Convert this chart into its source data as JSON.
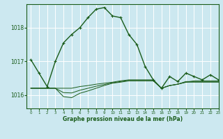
{
  "title": "Graphe pression niveau de la mer (hPa)",
  "bg_color": "#cce8f0",
  "grid_color": "#ffffff",
  "line_color": "#1a5c1a",
  "xlim": [
    -0.5,
    23
  ],
  "ylim": [
    1015.6,
    1018.7
  ],
  "yticks": [
    1016,
    1017,
    1018
  ],
  "xtick_labels": [
    "0",
    "1",
    "2",
    "3",
    "4",
    "5",
    "6",
    "7",
    "8",
    "9",
    "10",
    "11",
    "12",
    "13",
    "14",
    "15",
    "16",
    "17",
    "18",
    "19",
    "20",
    "21",
    "22",
    "23"
  ],
  "series1_x": [
    0,
    1,
    2,
    3,
    4,
    5,
    6,
    7,
    8,
    9,
    10,
    11,
    12,
    13,
    14,
    15,
    16,
    17,
    18,
    19,
    20,
    21,
    22,
    23
  ],
  "series1_y": [
    1017.05,
    1016.65,
    1016.25,
    1017.0,
    1017.55,
    1017.8,
    1018.0,
    1018.3,
    1018.55,
    1018.6,
    1018.35,
    1018.3,
    1017.8,
    1017.5,
    1016.85,
    1016.45,
    1016.2,
    1016.55,
    1016.4,
    1016.65,
    1016.55,
    1016.45,
    1016.6,
    1016.45
  ],
  "series2_x": [
    0,
    1,
    2,
    3,
    4,
    5,
    6,
    7,
    8,
    9,
    10,
    11,
    12,
    13,
    14,
    15,
    16,
    17,
    18,
    19,
    20,
    21,
    22,
    23
  ],
  "series2_y": [
    1016.2,
    1016.2,
    1016.2,
    1016.2,
    1016.2,
    1016.2,
    1016.25,
    1016.28,
    1016.32,
    1016.35,
    1016.38,
    1016.42,
    1016.45,
    1016.45,
    1016.45,
    1016.45,
    1016.2,
    1016.28,
    1016.32,
    1016.38,
    1016.42,
    1016.42,
    1016.42,
    1016.42
  ],
  "series3_x": [
    0,
    1,
    2,
    3,
    4,
    5,
    6,
    7,
    8,
    9,
    10,
    11,
    12,
    13,
    14,
    15,
    16,
    17,
    18,
    19,
    20,
    21,
    22,
    23
  ],
  "series3_y": [
    1016.2,
    1016.2,
    1016.2,
    1016.2,
    1015.95,
    1015.92,
    1016.05,
    1016.12,
    1016.2,
    1016.28,
    1016.35,
    1016.38,
    1016.42,
    1016.42,
    1016.42,
    1016.42,
    1016.2,
    1016.28,
    1016.32,
    1016.38,
    1016.38,
    1016.38,
    1016.38,
    1016.38
  ],
  "series4_x": [
    0,
    1,
    2,
    3,
    4,
    5,
    6,
    7,
    8,
    9,
    10,
    11,
    12,
    13,
    14,
    15,
    16,
    17,
    18,
    19,
    20,
    21,
    22,
    23
  ],
  "series4_y": [
    1016.2,
    1016.2,
    1016.2,
    1016.2,
    1016.07,
    1016.06,
    1016.14,
    1016.2,
    1016.26,
    1016.31,
    1016.36,
    1016.4,
    1016.43,
    1016.43,
    1016.43,
    1016.43,
    1016.2,
    1016.28,
    1016.32,
    1016.4,
    1016.4,
    1016.4,
    1016.4,
    1016.4
  ]
}
